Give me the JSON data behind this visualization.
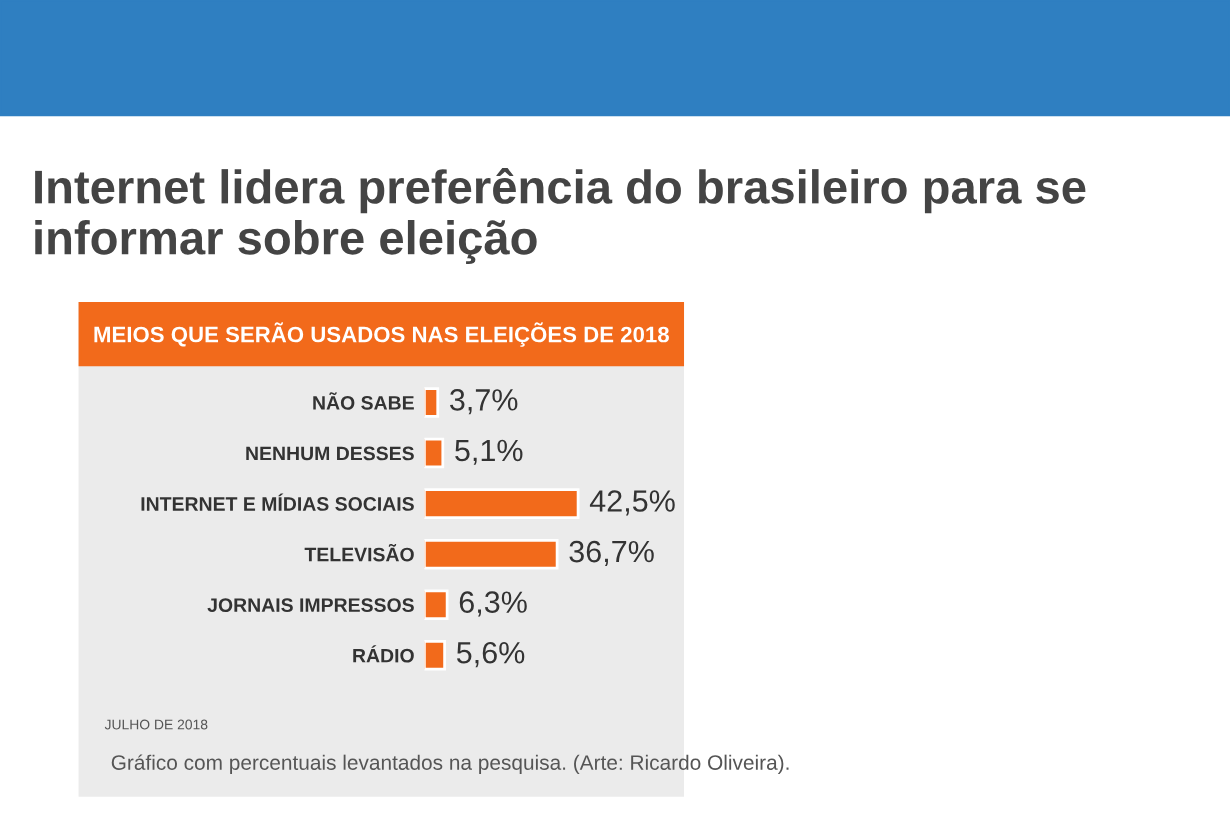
{
  "chart_data": {
    "type": "bar",
    "orientation": "horizontal",
    "title": "Internet lidera preferência do brasileiro para se informar sobre eleição",
    "subtitle": "MEIOS QUE SERÃO USADOS NAS ELEIÇÕES DE 2018",
    "categories": [
      "NÃO SABE",
      "NENHUM DESSES",
      "INTERNET E MÍDIAS SOCIAIS",
      "TELEVISÃO",
      "JORNAIS IMPRESSOS",
      "RÁDIO"
    ],
    "values": [
      3.7,
      5.1,
      42.5,
      36.7,
      6.3,
      5.6
    ],
    "value_labels": [
      "3,7%",
      "5,1%",
      "42,5%",
      "36,7%",
      "6,3%",
      "5,6%"
    ],
    "color": "#f26a1b",
    "annotations": [
      "JULHO DE 2018",
      "Gráfico com percentuais levantados na pesquisa. (Arte: Ricardo Oliveira)."
    ],
    "grid": false,
    "legend": false
  }
}
